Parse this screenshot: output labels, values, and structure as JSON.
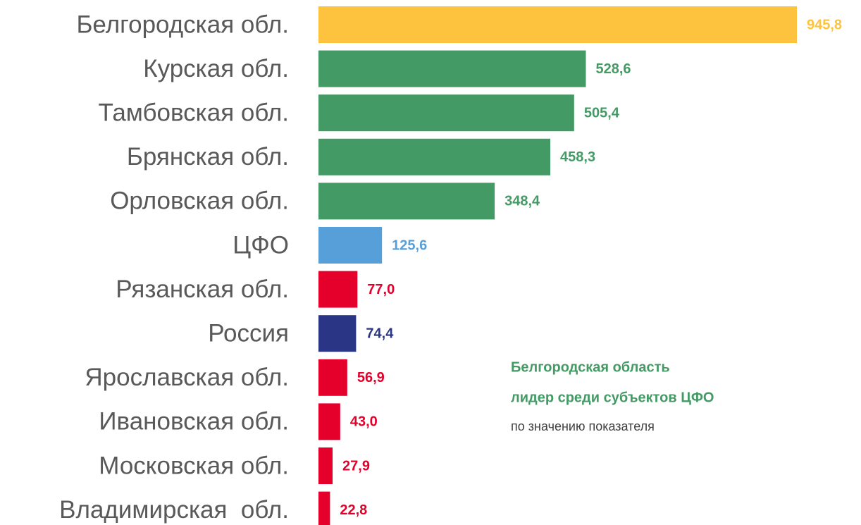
{
  "chart_data": {
    "type": "barh",
    "categories": [
      "Белгородская обл.",
      "Курская обл.",
      "Тамбовская обл.",
      "Брянская обл.",
      "Орловская обл.",
      "ЦФО",
      "Рязанская обл.",
      "Россия",
      "Ярославская обл.",
      "Ивановская обл.",
      "Московская обл.",
      "Владимирская  обл."
    ],
    "values": [
      945.8,
      528.6,
      505.4,
      458.3,
      348.4,
      125.6,
      77.0,
      74.4,
      56.9,
      43.0,
      27.9,
      22.8
    ],
    "value_labels": [
      "945,8",
      "528,6",
      "505,4",
      "458,3",
      "348,4",
      "125,6",
      "77,0",
      "74,4",
      "56,9",
      "43,0",
      "27,9",
      "22,8"
    ],
    "colors": [
      "#fdc33e",
      "#439a64",
      "#439a64",
      "#439a64",
      "#439a64",
      "#569fd8",
      "#e4002b",
      "#2a3585",
      "#e4002b",
      "#e4002b",
      "#e4002b",
      "#e4002b"
    ],
    "annotations": [
      "Белгородская область",
      "лидер среди субъектов ЦФО",
      "по значению показателя"
    ]
  }
}
